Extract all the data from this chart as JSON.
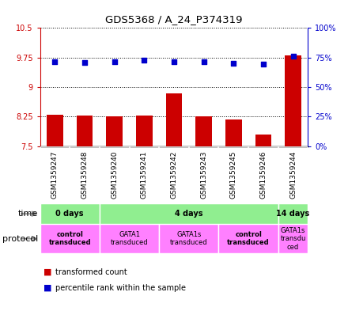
{
  "title": "GDS5368 / A_24_P374319",
  "samples": [
    "GSM1359247",
    "GSM1359248",
    "GSM1359240",
    "GSM1359241",
    "GSM1359242",
    "GSM1359243",
    "GSM1359245",
    "GSM1359246",
    "GSM1359244"
  ],
  "red_values": [
    8.3,
    8.28,
    8.25,
    8.28,
    8.85,
    8.25,
    8.18,
    7.8,
    9.8
  ],
  "blue_values": [
    9.65,
    9.62,
    9.65,
    9.68,
    9.65,
    9.65,
    9.6,
    9.58,
    9.78
  ],
  "ylim_left": [
    7.5,
    10.5
  ],
  "ylim_right": [
    0,
    100
  ],
  "yticks_left": [
    7.5,
    8.25,
    9.0,
    9.75,
    10.5
  ],
  "yticks_right": [
    0,
    25,
    50,
    75,
    100
  ],
  "ytick_labels_left": [
    "7.5",
    "8.25",
    "9",
    "9.75",
    "10.5"
  ],
  "ytick_labels_right": [
    "0%",
    "25%",
    "50%",
    "75%",
    "100%"
  ],
  "time_groups": [
    {
      "label": "0 days",
      "start": 0,
      "end": 2,
      "color": "#90EE90"
    },
    {
      "label": "4 days",
      "start": 2,
      "end": 8,
      "color": "#90EE90"
    },
    {
      "label": "14 days",
      "start": 8,
      "end": 9,
      "color": "#90EE90"
    }
  ],
  "protocol_groups": [
    {
      "label": "control\ntransduced",
      "start": 0,
      "end": 2,
      "color": "#FF80FF",
      "bold": true
    },
    {
      "label": "GATA1\ntransduced",
      "start": 2,
      "end": 4,
      "color": "#FF80FF",
      "bold": false
    },
    {
      "label": "GATA1s\ntransduced",
      "start": 4,
      "end": 6,
      "color": "#FF80FF",
      "bold": false
    },
    {
      "label": "control\ntransduced",
      "start": 6,
      "end": 8,
      "color": "#FF80FF",
      "bold": true
    },
    {
      "label": "GATA1s\ntransdu\nced",
      "start": 8,
      "end": 9,
      "color": "#FF80FF",
      "bold": false
    }
  ],
  "bar_color": "#CC0000",
  "dot_color": "#0000CC",
  "bar_width": 0.55,
  "legend_red": "transformed count",
  "legend_blue": "percentile rank within the sample",
  "left_axis_color": "#CC0000",
  "right_axis_color": "#0000CC",
  "background_color": "#ffffff"
}
